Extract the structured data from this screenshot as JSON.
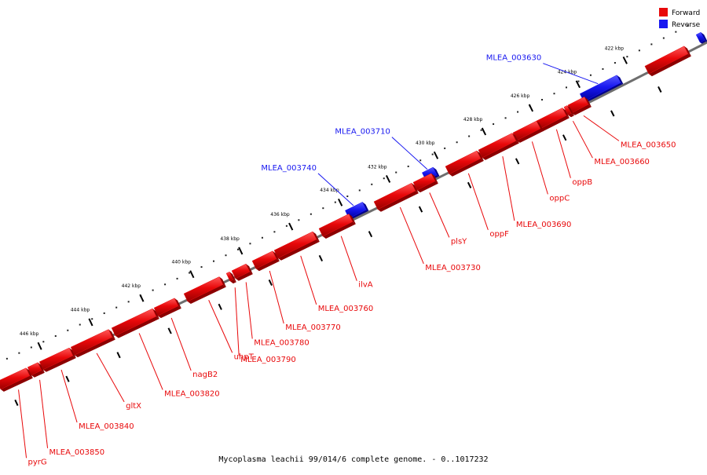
{
  "title": "Mycoplasma leachii 99/014/6 complete genome. - 0..1017232",
  "colors": {
    "forward": "#e8080a",
    "reverse": "#1717f0",
    "backbone": "#6e6e6e"
  },
  "legend": [
    {
      "label": "Forward",
      "color": "#e8080a"
    },
    {
      "label": "Reverse",
      "color": "#1717f0"
    }
  ],
  "scale_ticks": [
    "422 kbp",
    "424 kbp",
    "426 kbp",
    "428 kbp",
    "430 kbp",
    "432 kbp",
    "434 kbp",
    "436 kbp",
    "438 kbp",
    "440 kbp",
    "442 kbp",
    "444 kbp",
    "446 kbp"
  ],
  "genes": [
    {
      "label": "MLEA_003630",
      "strand": "reverse"
    },
    {
      "label": "MLEA_003650",
      "strand": "forward"
    },
    {
      "label": "MLEA_003660",
      "strand": "forward"
    },
    {
      "label": "oppB",
      "strand": "forward"
    },
    {
      "label": "oppC",
      "strand": "forward"
    },
    {
      "label": "MLEA_003690",
      "strand": "forward"
    },
    {
      "label": "MLEA_003710",
      "strand": "reverse"
    },
    {
      "label": "oppF",
      "strand": "forward"
    },
    {
      "label": "plsY",
      "strand": "forward"
    },
    {
      "label": "MLEA_003730",
      "strand": "forward"
    },
    {
      "label": "MLEA_003740",
      "strand": "reverse"
    },
    {
      "label": "ilvA",
      "strand": "forward"
    },
    {
      "label": "MLEA_003760",
      "strand": "forward"
    },
    {
      "label": "MLEA_003770",
      "strand": "forward"
    },
    {
      "label": "MLEA_003780",
      "strand": "forward"
    },
    {
      "label": "MLEA_003790",
      "strand": "forward"
    },
    {
      "label": "uhpT",
      "strand": "forward"
    },
    {
      "label": "nagB2",
      "strand": "forward"
    },
    {
      "label": "MLEA_003820",
      "strand": "forward"
    },
    {
      "label": "gltX",
      "strand": "forward"
    },
    {
      "label": "MLEA_003840",
      "strand": "forward"
    },
    {
      "label": "MLEA_003850",
      "strand": "forward"
    },
    {
      "label": "pyrG",
      "strand": "forward"
    }
  ]
}
